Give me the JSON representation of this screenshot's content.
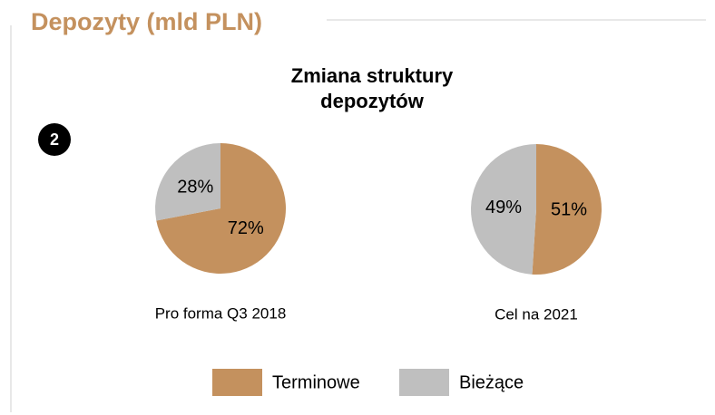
{
  "header": {
    "title": "Depozyty (mld PLN)",
    "subtitle": "Zmiana struktury depozytów",
    "badge": "2"
  },
  "chart_data": [
    {
      "type": "pie",
      "title": "Pro forma Q3 2018",
      "categories": [
        "Terminowe",
        "Bieżące"
      ],
      "values": [
        72,
        28
      ],
      "value_labels": [
        "72%",
        "28%"
      ],
      "colors": [
        "#c4915e",
        "#bfbfbf"
      ]
    },
    {
      "type": "pie",
      "title": "Cel na 2021",
      "categories": [
        "Terminowe",
        "Bieżące"
      ],
      "values": [
        51,
        49
      ],
      "value_labels": [
        "51%",
        "49%"
      ],
      "colors": [
        "#c4915e",
        "#bfbfbf"
      ]
    }
  ]
}
